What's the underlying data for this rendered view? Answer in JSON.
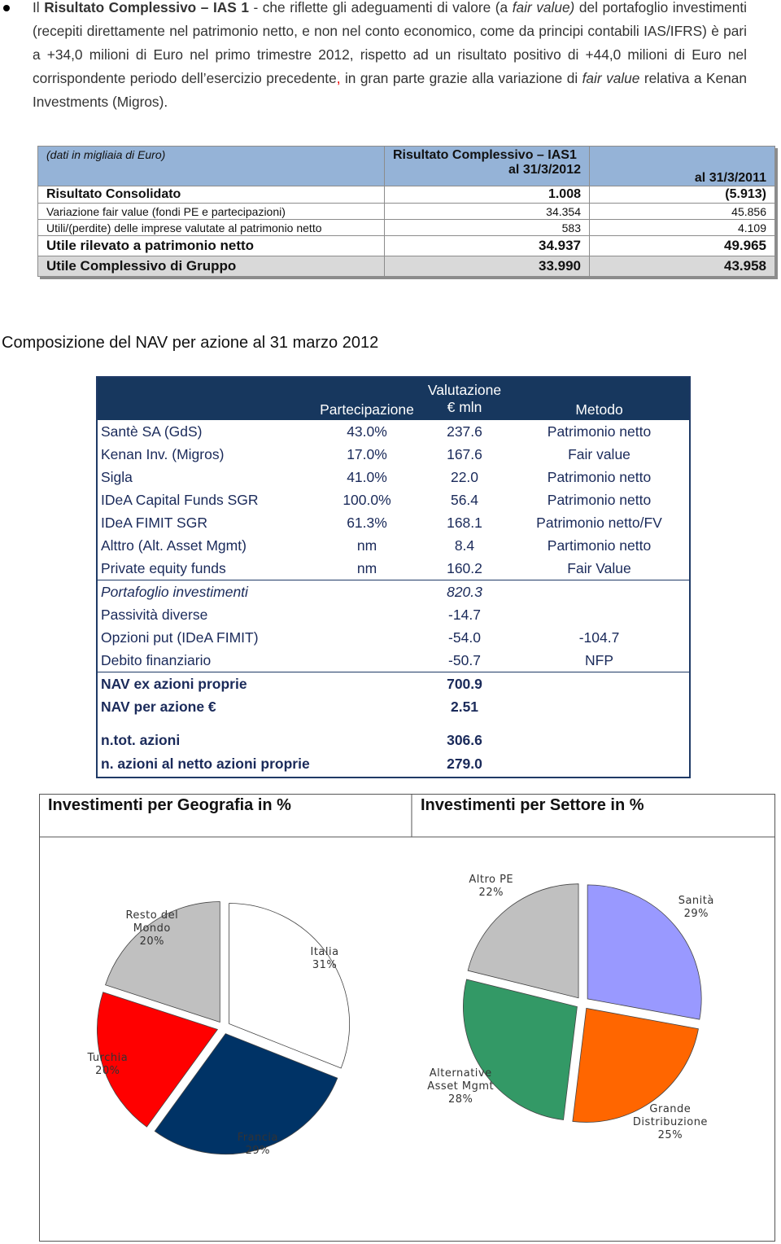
{
  "paragraph": {
    "runs": [
      "Il ",
      "Risultato Complessivo – IAS 1",
      " - che riflette gli adeguamenti di valore (a ",
      "fair value)",
      " del portafoglio investimenti (recepiti direttamente nel patrimonio netto, e non nel conto economico, come da principi contabili IAS/IFRS) è pari a +34,0 milioni di Euro nel primo trimestre 2012, rispetto ad un risultato positivo di +44,0 milioni di Euro nel corrispondente periodo dell’esercizio precedente",
      ",",
      " in gran parte grazie alla variazione di ",
      "fair value",
      " relativa a Kenan Investments (Migros)."
    ]
  },
  "table1": {
    "header": {
      "note": "(dati in migliaia di Euro)",
      "group": "Risultato Complessivo – IAS1",
      "col1": "al 31/3/2012",
      "col2": "al 31/3/2011"
    },
    "rows": [
      [
        "Risultato Consolidato",
        "1.008",
        "(5.913)"
      ],
      [
        "Variazione fair value (fondi PE e partecipazioni)",
        "34.354",
        "45.856"
      ],
      [
        "Utili/(perdite) delle imprese valutate al patrimonio netto",
        "583",
        "4.109"
      ],
      [
        "Utile rilevato a patrimonio netto",
        "34.937",
        "49.965"
      ],
      [
        "Utile Complessivo di Gruppo",
        "33.990",
        "43.958"
      ]
    ]
  },
  "nav_section": {
    "title": "Composizione del NAV per azione al 31 marzo 2012",
    "header": {
      "valutazione": "Valutazione",
      "partecipazione": "Partecipazione",
      "valore": "€ mln",
      "metodo": "Metodo"
    },
    "rows": [
      {
        "name": "Santè SA (GdS)",
        "partecipazione": "43.0%",
        "valore": "237.6",
        "metodo": "Patrimonio netto"
      },
      {
        "name": "Kenan Inv. (Migros)",
        "partecipazione": "17.0%",
        "valore": "167.6",
        "metodo": "Fair value"
      },
      {
        "name": "Sigla",
        "partecipazione": "41.0%",
        "valore": "22.0",
        "metodo": "Patrimonio netto"
      },
      {
        "name": "IDeA Capital Funds SGR",
        "partecipazione": "100.0%",
        "valore": "56.4",
        "metodo": "Patrimonio netto"
      },
      {
        "name": "IDeA FIMIT SGR",
        "partecipazione": "61.3%",
        "valore": "168.1",
        "metodo": "Patrimonio netto/FV"
      },
      {
        "name": "Alttro (Alt. Asset Mgmt)",
        "partecipazione": "nm",
        "valore": "8.4",
        "metodo": "Partimonio netto"
      },
      {
        "name": "Private equity funds",
        "partecipazione": "nm",
        "valore": "160.2",
        "metodo": "Fair Value"
      },
      {
        "name": "Portafoglio investimenti",
        "valore": "820.3"
      },
      {
        "name": "Passività diverse",
        "valore": "-14.7"
      },
      {
        "name": "Opzioni put (IDeA FIMIT)",
        "valore": "-54.0",
        "metodo": "-104.7"
      },
      {
        "name": "Debito finanziario",
        "valore": "-50.7",
        "metodo": "NFP"
      },
      {
        "name": "NAV ex azioni proprie",
        "valore": "700.9"
      },
      {
        "name": "NAV per azione €",
        "valore": "2.51"
      },
      {
        "name": "n.tot. azioni",
        "valore": "306.6"
      },
      {
        "name": "n. azioni al netto azioni proprie",
        "valore": "279.0"
      }
    ]
  },
  "chart_data": [
    {
      "type": "pie",
      "title": "Investimenti per Geografia in %",
      "categories": [
        "Italia",
        "Francia",
        "Turchia",
        "Resto del Mondo"
      ],
      "values": [
        31,
        29,
        20,
        20
      ],
      "value_labels": [
        "31%",
        "29%",
        "20%",
        "20%"
      ],
      "colors": [
        "#ffffff",
        "#003366",
        "#ff0000",
        "#c0c0c0"
      ]
    },
    {
      "type": "pie",
      "title": "Investimenti per Settore in %",
      "categories": [
        "Sanità",
        "Grande Distribuzione",
        "Alternative Asset Mgmt",
        "Altro PE"
      ],
      "values": [
        29,
        25,
        28,
        22
      ],
      "value_labels": [
        "29%",
        "25%",
        "28%",
        "22%"
      ],
      "colors": [
        "#9999ff",
        "#ff6600",
        "#339966",
        "#c0c0c0"
      ]
    }
  ]
}
